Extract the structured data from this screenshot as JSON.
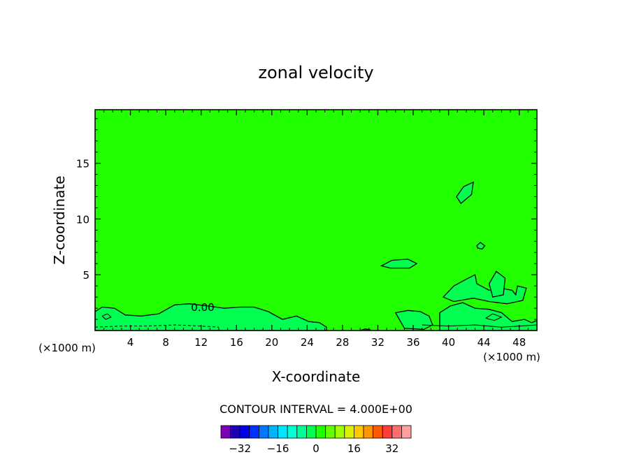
{
  "chart_data": {
    "type": "heatmap",
    "title": "zonal velocity",
    "xlabel": "X-coordinate",
    "ylabel": "Z-coordinate",
    "x_unit": "(×1000 m)",
    "xlim": [
      0,
      50
    ],
    "ylim": [
      0,
      19.8
    ],
    "x_ticks": [
      4,
      8,
      12,
      16,
      20,
      24,
      28,
      32,
      36,
      40,
      44,
      48
    ],
    "y_ticks": [
      5,
      10,
      15
    ],
    "field_value": 0,
    "field_color": "#22ff00",
    "contour_label": "0.00",
    "contour_interval_text": "CONTOUR INTERVAL = 4.000E+00",
    "colorbar": {
      "levels": [
        -36,
        -32,
        -28,
        -24,
        -20,
        -16,
        -12,
        -8,
        -4,
        0,
        4,
        8,
        12,
        16,
        20,
        24,
        28,
        32,
        36
      ],
      "colors": [
        "#7b00b4",
        "#1e00b4",
        "#0000e6",
        "#0032ff",
        "#0078ff",
        "#00b4ff",
        "#00e6ff",
        "#00ffd2",
        "#00ff96",
        "#00ff50",
        "#22ff00",
        "#64ff00",
        "#a0ff00",
        "#dcf000",
        "#ffc800",
        "#ff9600",
        "#ff5a00",
        "#ff3c3c",
        "#ff6e6e",
        "#ffa0a0"
      ],
      "tick_values": [
        -32,
        -16,
        0,
        16,
        32
      ]
    },
    "regions": [
      {
        "name": "region-near-surface-west",
        "x": [
          0,
          0.8,
          2.2,
          3.4,
          5.2,
          7.2,
          9.0,
          10.6,
          12.8,
          14.6,
          16.4,
          18.0,
          19.6,
          21.2,
          22.8,
          24.2,
          25.4,
          26.2,
          26.2,
          0
        ],
        "z": [
          1.7,
          2.1,
          2.0,
          1.4,
          1.3,
          1.5,
          2.3,
          2.4,
          2.2,
          2.0,
          2.1,
          2.1,
          1.7,
          1.0,
          1.3,
          0.8,
          0.7,
          0.3,
          0,
          0
        ]
      },
      {
        "name": "region-surface-mid",
        "x": [
          30,
          30.6,
          31.2,
          30,
          30
        ],
        "z": [
          0,
          0.15,
          0.05,
          0.02,
          0
        ]
      },
      {
        "name": "region-mid-low",
        "x": [
          34,
          35.4,
          36.8,
          37.8,
          38.2,
          37.2,
          35,
          34
        ],
        "z": [
          1.6,
          1.8,
          1.7,
          1.3,
          0.5,
          0.1,
          0.2,
          1.6
        ]
      },
      {
        "name": "region-east-lower",
        "x": [
          39.0,
          40.2,
          41.6,
          43.0,
          44.6,
          46.0,
          47.2,
          48.6,
          49.4,
          50,
          50,
          39.0
        ],
        "z": [
          1.6,
          2.2,
          2.5,
          2.0,
          1.9,
          1.6,
          0.8,
          1.0,
          0.7,
          0.9,
          0,
          0
        ]
      },
      {
        "name": "region-east-upper",
        "x": [
          39.4,
          40.6,
          42.0,
          43.0,
          43.2,
          44.6,
          46.0,
          47.2,
          47.6,
          47.8,
          48.8,
          48.4,
          46.6,
          44.6,
          42.8,
          40.6,
          39.4
        ],
        "z": [
          3.0,
          4.0,
          4.6,
          5.0,
          4.2,
          3.6,
          3.8,
          3.6,
          3.2,
          4.0,
          3.8,
          2.7,
          2.4,
          2.6,
          2.9,
          2.6,
          3.0
        ]
      },
      {
        "name": "region-east-patch",
        "x": [
          44.6,
          45.4,
          46.4,
          46.2,
          45.0,
          44.6
        ],
        "z": [
          4.2,
          5.3,
          4.7,
          3.2,
          3.0,
          4.2
        ]
      },
      {
        "name": "region-mid-cell",
        "x": [
          32.4,
          33.6,
          35.4,
          36.4,
          35.6,
          33.4,
          32.4
        ],
        "z": [
          5.8,
          6.3,
          6.4,
          6.0,
          5.6,
          5.6,
          5.8
        ]
      },
      {
        "name": "region-small-cell",
        "x": [
          43.2,
          43.6,
          44.1,
          43.8,
          43.3,
          43.2
        ],
        "z": [
          7.6,
          7.9,
          7.6,
          7.3,
          7.4,
          7.6
        ]
      },
      {
        "name": "region-upper-cell",
        "x": [
          40.9,
          41.7,
          42.8,
          42.6,
          41.4,
          40.9
        ],
        "z": [
          12.0,
          12.9,
          13.3,
          12.2,
          11.4,
          12.0
        ]
      }
    ],
    "extra_contours": [
      {
        "name": "contour-near-surface-dashed",
        "dashed": true,
        "x": [
          0,
          3,
          6,
          9,
          12,
          14
        ],
        "z": [
          0.3,
          0.4,
          0.4,
          0.5,
          0.4,
          0.3
        ]
      },
      {
        "name": "contour-east-surface",
        "dashed": false,
        "x": [
          37,
          40,
          43,
          46,
          50
        ],
        "z": [
          0.5,
          0.4,
          0.5,
          0.3,
          0.5
        ]
      },
      {
        "name": "contour-inner-west",
        "dashed": false,
        "x": [
          0.8,
          1.4,
          1.8,
          1.2,
          0.8
        ],
        "z": [
          1.3,
          1.5,
          1.2,
          1.0,
          1.3
        ]
      },
      {
        "name": "contour-inner-east",
        "dashed": false,
        "x": [
          44.2,
          45.0,
          46.0,
          45.2,
          44.2
        ],
        "z": [
          1.1,
          1.5,
          1.2,
          0.9,
          1.1
        ]
      }
    ]
  }
}
